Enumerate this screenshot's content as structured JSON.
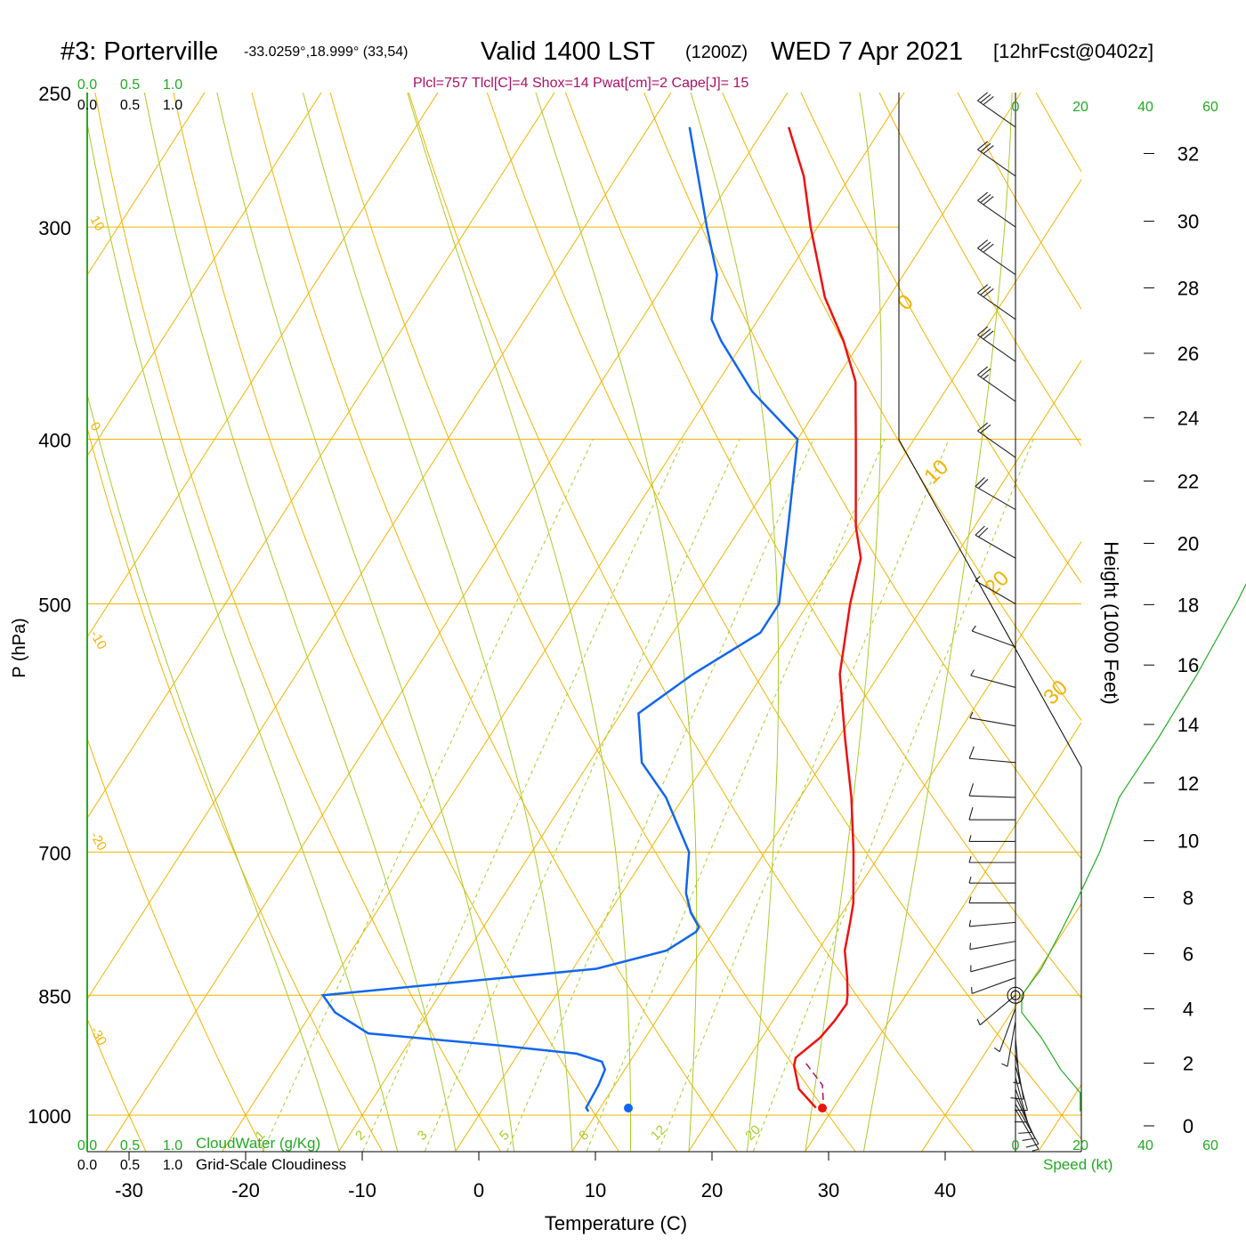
{
  "header": {
    "station": "#3: Porterville",
    "coords": "-33.0259°,18.999° (33,54)",
    "valid": "Valid 1400 LST",
    "zulu": "(1200Z)",
    "date": "WED 7 Apr 2021",
    "forecast": "[12hrFcst@0402z]",
    "params": "Plcl=757 Tlcl[C]=4 Shox=14 Pwat[cm]=2 Cape[J]= 15"
  },
  "colors": {
    "temperature": "#ee1111",
    "dewpoint": "#1166ee",
    "isobar": "#f2b400",
    "isotherm": "#f2b400",
    "dry_adiabat": "#f2b400",
    "moist_adiabat": "#a8cc28",
    "mixing_ratio": "#a8cc28",
    "cloud_axis": "#22aa22",
    "wind_barb": "#222222",
    "height_curve": "#22aa22"
  },
  "cloud_scale": {
    "top_green": [
      "0.0",
      "0.5",
      "1.0"
    ],
    "top_black": [
      "0.0",
      "0.5",
      "1.0"
    ],
    "bottom_green": [
      "0.0",
      "0.5",
      "1.0"
    ],
    "bottom_black": [
      "0.0",
      "0.5",
      "1.0"
    ],
    "cloudwater_label": "CloudWater (g/Kg)",
    "cloudiness_label": "Grid-Scale Cloudiness"
  },
  "speed_scale": {
    "top_black": [
      "0"
    ],
    "top_green": [
      "20",
      "40",
      "60"
    ],
    "bottom_black": [
      "0",
      "20"
    ],
    "bottom_green": [
      "40",
      "60"
    ],
    "label": "Speed (kt)"
  },
  "chart_data": {
    "type": "skew-t",
    "xlabel": "Temperature (C)",
    "ylabel": "P (hPa)",
    "y2label": "Height (1000 Feet)",
    "x_ticks": [
      "-30",
      "-20",
      "-10",
      "0",
      "10",
      "20",
      "30",
      "40"
    ],
    "p_ticks": [
      "250",
      "300",
      "400",
      "500",
      "700",
      "850",
      "1000"
    ],
    "height_ticks": [
      "0",
      "2",
      "4",
      "6",
      "8",
      "10",
      "12",
      "14",
      "16",
      "18",
      "20",
      "22",
      "24",
      "26",
      "28",
      "30",
      "32"
    ],
    "isotherm_labels": [
      "10",
      "0",
      "-10",
      "-20",
      "-30"
    ],
    "dry_adiabat_labels": [
      "0",
      "10",
      "20",
      "30"
    ],
    "mixing_ratio_labels": [
      "1",
      "2",
      "3",
      "5",
      "8",
      "12",
      "20"
    ],
    "temperature": [
      {
        "p": 990,
        "t": 28.5
      },
      {
        "p": 965,
        "t": 26.0
      },
      {
        "p": 935,
        "t": 24.3
      },
      {
        "p": 925,
        "t": 24.0
      },
      {
        "p": 900,
        "t": 25.0
      },
      {
        "p": 880,
        "t": 25.3
      },
      {
        "p": 860,
        "t": 25.4
      },
      {
        "p": 850,
        "t": 25.0
      },
      {
        "p": 830,
        "t": 24.0
      },
      {
        "p": 800,
        "t": 22.3
      },
      {
        "p": 770,
        "t": 21.2
      },
      {
        "p": 750,
        "t": 20.4
      },
      {
        "p": 700,
        "t": 17.6
      },
      {
        "p": 650,
        "t": 14.4
      },
      {
        "p": 600,
        "t": 10.6
      },
      {
        "p": 550,
        "t": 6.6
      },
      {
        "p": 500,
        "t": 3.6
      },
      {
        "p": 470,
        "t": 2.0
      },
      {
        "p": 450,
        "t": -0.2
      },
      {
        "p": 400,
        "t": -5.0
      },
      {
        "p": 370,
        "t": -8.2
      },
      {
        "p": 350,
        "t": -11.5
      },
      {
        "p": 330,
        "t": -15.5
      },
      {
        "p": 300,
        "t": -20.6
      },
      {
        "p": 280,
        "t": -24.0
      },
      {
        "p": 262,
        "t": -28.0
      }
    ],
    "dewpoint": [
      {
        "p": 995,
        "t": 9.2
      },
      {
        "p": 990,
        "t": 8.8
      },
      {
        "p": 960,
        "t": 8.6
      },
      {
        "p": 940,
        "t": 8.3
      },
      {
        "p": 930,
        "t": 7.6
      },
      {
        "p": 920,
        "t": 5.0
      },
      {
        "p": 910,
        "t": -2.0
      },
      {
        "p": 895,
        "t": -14.0
      },
      {
        "p": 870,
        "t": -18.0
      },
      {
        "p": 850,
        "t": -20.0
      },
      {
        "p": 820,
        "t": 2.0
      },
      {
        "p": 800,
        "t": 7.0
      },
      {
        "p": 780,
        "t": 8.5
      },
      {
        "p": 775,
        "t": 8.5
      },
      {
        "p": 760,
        "t": 7.0
      },
      {
        "p": 740,
        "t": 5.5
      },
      {
        "p": 700,
        "t": 3.5
      },
      {
        "p": 650,
        "t": -1.5
      },
      {
        "p": 620,
        "t": -5.5
      },
      {
        "p": 580,
        "t": -8.5
      },
      {
        "p": 550,
        "t": -6.0
      },
      {
        "p": 520,
        "t": -2.5
      },
      {
        "p": 500,
        "t": -2.5
      },
      {
        "p": 450,
        "t": -6.0
      },
      {
        "p": 400,
        "t": -10.0
      },
      {
        "p": 375,
        "t": -16.5
      },
      {
        "p": 350,
        "t": -22.0
      },
      {
        "p": 340,
        "t": -24.0
      },
      {
        "p": 320,
        "t": -26.0
      },
      {
        "p": 300,
        "t": -29.5
      },
      {
        "p": 262,
        "t": -36.5
      }
    ],
    "parcel": [
      {
        "p": 995,
        "t": 29.4
      },
      {
        "p": 960,
        "t": 27.8
      },
      {
        "p": 930,
        "t": 25.0
      }
    ],
    "surface_temp_marker": {
      "p": 995,
      "t": 29.4
    },
    "surface_dewpoint_marker": {
      "p": 995,
      "t": 12.8
    },
    "height_curve": [
      {
        "p": 995,
        "s": 3
      },
      {
        "p": 970,
        "s": 3
      },
      {
        "p": 940,
        "s": 2
      },
      {
        "p": 900,
        "s": 1
      },
      {
        "p": 870,
        "s": 0
      },
      {
        "p": 850,
        "s": 0
      },
      {
        "p": 820,
        "s": 1
      },
      {
        "p": 780,
        "s": 2
      },
      {
        "p": 740,
        "s": 3
      },
      {
        "p": 700,
        "s": 4
      },
      {
        "p": 650,
        "s": 5
      },
      {
        "p": 600,
        "s": 7
      },
      {
        "p": 550,
        "s": 9
      },
      {
        "p": 500,
        "s": 11
      },
      {
        "p": 450,
        "s": 13
      },
      {
        "p": 400,
        "s": 15
      },
      {
        "p": 350,
        "s": 17
      },
      {
        "p": 300,
        "s": 19
      },
      {
        "p": 262,
        "s": 21
      }
    ],
    "wind_barbs": [
      {
        "p": 992,
        "dir": 150,
        "spd": 8
      },
      {
        "p": 985,
        "dir": 150,
        "spd": 10
      },
      {
        "p": 975,
        "dir": 155,
        "spd": 10
      },
      {
        "p": 965,
        "dir": 160,
        "spd": 12
      },
      {
        "p": 950,
        "dir": 165,
        "spd": 12
      },
      {
        "p": 935,
        "dir": 165,
        "spd": 12
      },
      {
        "p": 920,
        "dir": 170,
        "spd": 10
      },
      {
        "p": 900,
        "dir": 175,
        "spd": 8
      },
      {
        "p": 880,
        "dir": 190,
        "spd": 6
      },
      {
        "p": 865,
        "dir": 200,
        "spd": 6
      },
      {
        "p": 850,
        "dir": 230,
        "spd": 6
      },
      {
        "p": 830,
        "dir": 250,
        "spd": 8
      },
      {
        "p": 810,
        "dir": 255,
        "spd": 8
      },
      {
        "p": 790,
        "dir": 260,
        "spd": 8
      },
      {
        "p": 770,
        "dir": 265,
        "spd": 8
      },
      {
        "p": 750,
        "dir": 270,
        "spd": 8
      },
      {
        "p": 730,
        "dir": 270,
        "spd": 8
      },
      {
        "p": 710,
        "dir": 270,
        "spd": 8
      },
      {
        "p": 690,
        "dir": 270,
        "spd": 8
      },
      {
        "p": 670,
        "dir": 270,
        "spd": 10
      },
      {
        "p": 650,
        "dir": 272,
        "spd": 10
      },
      {
        "p": 620,
        "dir": 275,
        "spd": 10
      },
      {
        "p": 590,
        "dir": 280,
        "spd": 8
      },
      {
        "p": 560,
        "dir": 285,
        "spd": 8
      },
      {
        "p": 530,
        "dir": 290,
        "spd": 8
      },
      {
        "p": 500,
        "dir": 300,
        "spd": 5
      },
      {
        "p": 470,
        "dir": 300,
        "spd": 20
      },
      {
        "p": 440,
        "dir": 300,
        "spd": 20
      },
      {
        "p": 410,
        "dir": 305,
        "spd": 20
      },
      {
        "p": 380,
        "dir": 305,
        "spd": 25
      },
      {
        "p": 360,
        "dir": 305,
        "spd": 30
      },
      {
        "p": 340,
        "dir": 305,
        "spd": 30
      },
      {
        "p": 320,
        "dir": 305,
        "spd": 30
      },
      {
        "p": 300,
        "dir": 305,
        "spd": 30
      },
      {
        "p": 280,
        "dir": 305,
        "spd": 30
      },
      {
        "p": 262,
        "dir": 305,
        "spd": 30
      }
    ]
  }
}
